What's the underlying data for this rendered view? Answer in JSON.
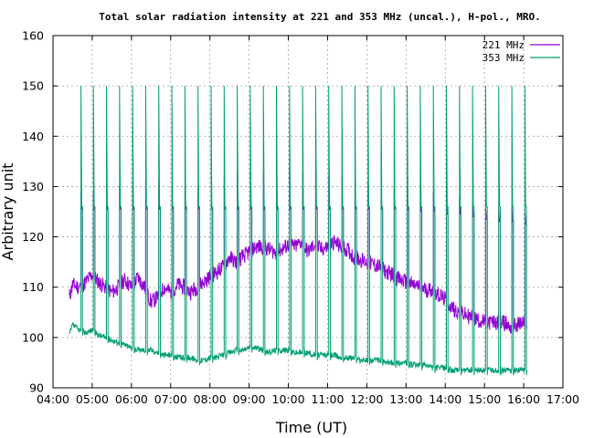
{
  "chart_data": {
    "type": "line",
    "title": "Total solar radiation intensity at 221 and 353 MHz (uncal.), H-pol., MRO.",
    "xlabel": "Time (UT)",
    "ylabel": "Arbitrary unit",
    "xlim": [
      "04:00",
      "17:00"
    ],
    "ylim": [
      90,
      160
    ],
    "x_ticks": [
      "04:00",
      "05:00",
      "06:00",
      "07:00",
      "08:00",
      "09:00",
      "10:00",
      "11:00",
      "12:00",
      "13:00",
      "14:00",
      "15:00",
      "16:00",
      "17:00"
    ],
    "y_ticks": [
      90,
      100,
      110,
      120,
      130,
      140,
      150,
      160
    ],
    "grid": true,
    "legend_position": "top-right",
    "series": [
      {
        "name": "221 MHz",
        "color": "#9400d3",
        "x": [
          "04:25",
          "04:30",
          "04:40",
          "04:50",
          "05:00",
          "05:10",
          "05:20",
          "05:30",
          "05:40",
          "05:50",
          "06:00",
          "06:10",
          "06:20",
          "06:30",
          "06:40",
          "06:50",
          "07:00",
          "07:10",
          "07:20",
          "07:30",
          "07:40",
          "07:50",
          "08:00",
          "08:10",
          "08:20",
          "08:30",
          "08:40",
          "08:50",
          "09:00",
          "09:10",
          "09:20",
          "09:30",
          "09:40",
          "09:50",
          "10:00",
          "10:10",
          "10:20",
          "10:30",
          "10:40",
          "10:50",
          "11:00",
          "11:10",
          "11:20",
          "11:30",
          "11:40",
          "11:50",
          "12:00",
          "12:10",
          "12:20",
          "12:30",
          "12:40",
          "12:50",
          "13:00",
          "13:10",
          "13:20",
          "13:30",
          "13:40",
          "13:50",
          "14:00",
          "14:10",
          "14:20",
          "14:30",
          "14:40",
          "14:50",
          "15:00",
          "15:10",
          "15:20",
          "15:30",
          "15:40",
          "15:50",
          "16:00",
          "16:05"
        ],
        "y": [
          108,
          110.5,
          110,
          111,
          112.5,
          111,
          110,
          109,
          110,
          111.5,
          110,
          112,
          110,
          107,
          108,
          110,
          109,
          110.5,
          110,
          109,
          110,
          111,
          112,
          113,
          114,
          116,
          115,
          116,
          117,
          118,
          118,
          117.5,
          117,
          117.5,
          118.5,
          118,
          119,
          117,
          118.5,
          117.5,
          118,
          119,
          118,
          117.5,
          116,
          115.5,
          115,
          114.5,
          114,
          113,
          112.5,
          111.5,
          111,
          110.5,
          110,
          109.5,
          109.5,
          108.5,
          107.5,
          106,
          105,
          104.5,
          104,
          103.5,
          103,
          103,
          103,
          103,
          102,
          102.5,
          103,
          102
        ]
      },
      {
        "name": "353 MHz",
        "color": "#009e73",
        "x": [
          "04:25",
          "04:30",
          "04:40",
          "04:50",
          "05:00",
          "05:10",
          "05:20",
          "05:30",
          "05:40",
          "05:50",
          "06:00",
          "06:10",
          "06:20",
          "06:30",
          "06:40",
          "06:50",
          "07:00",
          "07:10",
          "07:20",
          "07:30",
          "07:40",
          "07:50",
          "08:00",
          "08:10",
          "08:20",
          "08:30",
          "08:40",
          "08:50",
          "09:00",
          "09:10",
          "09:20",
          "09:30",
          "09:40",
          "09:50",
          "10:00",
          "10:10",
          "10:20",
          "10:30",
          "10:40",
          "10:50",
          "11:00",
          "11:10",
          "11:20",
          "11:30",
          "11:40",
          "11:50",
          "12:00",
          "12:10",
          "12:20",
          "12:30",
          "12:40",
          "12:50",
          "13:00",
          "13:10",
          "13:20",
          "13:30",
          "13:40",
          "13:50",
          "14:00",
          "14:10",
          "14:20",
          "14:30",
          "14:40",
          "14:50",
          "15:00",
          "15:10",
          "15:20",
          "15:30",
          "15:40",
          "15:50",
          "16:00",
          "16:05"
        ],
        "y": [
          100.5,
          102.5,
          101.5,
          101,
          101.5,
          100.5,
          100,
          99.5,
          99,
          98.5,
          98,
          97.5,
          97.5,
          97.5,
          97,
          96.5,
          96.5,
          96,
          96,
          96,
          95.5,
          95.5,
          96,
          96,
          96.5,
          97,
          97.5,
          97.5,
          98,
          98,
          97.5,
          97,
          97.5,
          97.5,
          97.5,
          97,
          97,
          97,
          96.5,
          96.5,
          96.5,
          96.5,
          96,
          96,
          96,
          95.5,
          95.5,
          95.5,
          95.5,
          95,
          95,
          95,
          95,
          94.5,
          94.5,
          94.5,
          94,
          94,
          94,
          93.5,
          93.5,
          93.5,
          93.5,
          93.5,
          93.5,
          93.5,
          93.5,
          93.5,
          93.5,
          93.5,
          93.5,
          93.5
        ]
      }
    ],
    "calibration_pulses": {
      "times": [
        "04:44",
        "05:03",
        "05:23",
        "05:43",
        "06:03",
        "06:23",
        "06:43",
        "07:03",
        "07:23",
        "07:43",
        "08:03",
        "08:23",
        "08:43",
        "09:03",
        "09:23",
        "09:43",
        "10:03",
        "10:23",
        "10:43",
        "11:03",
        "11:23",
        "11:43",
        "12:03",
        "12:23",
        "12:43",
        "13:03",
        "13:23",
        "13:43",
        "14:03",
        "14:23",
        "14:43",
        "15:03",
        "15:23",
        "15:43",
        "16:03"
      ],
      "peak_221": [
        129,
        129,
        130,
        130,
        131,
        131,
        131,
        130,
        130,
        130,
        131,
        132,
        133,
        133,
        133,
        133,
        134,
        133,
        133,
        132,
        132,
        131,
        131,
        131,
        130,
        130,
        130,
        129,
        128,
        128,
        127,
        126,
        126,
        126,
        125
      ],
      "plateau_221": [
        125.5,
        125.5,
        125.5,
        125.5,
        125.5,
        125.5,
        125.5,
        125.5,
        125.5,
        125.5,
        125.5,
        125.5,
        125.5,
        125.5,
        125.5,
        125.5,
        125.5,
        125.5,
        125.5,
        125.5,
        125.5,
        125.5,
        125.5,
        125.5,
        125.5,
        125.5,
        125,
        125,
        124.5,
        124.5,
        124,
        123.5,
        123,
        123,
        122.5
      ],
      "peak_353": 150
    }
  }
}
